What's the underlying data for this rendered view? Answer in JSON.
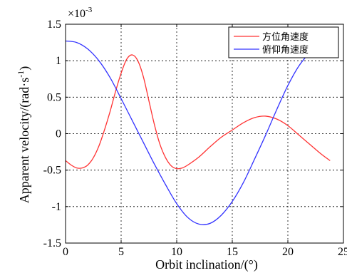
{
  "chart_data": {
    "type": "line",
    "xlabel": "Orbit inclination/(°)",
    "ylabel_parts": {
      "main": "Apparent velocity/(rad·s",
      "sup": "-1",
      "end": ")"
    },
    "scale_label": {
      "base": "×10",
      "exp": "-3"
    },
    "xlim": [
      0,
      25
    ],
    "ylim": [
      -1.5,
      1.5
    ],
    "x_ticks": [
      "0",
      "5",
      "10",
      "15",
      "20",
      "25"
    ],
    "y_ticks": [
      "-1.5",
      "-1",
      "-0.5",
      "0",
      "0.5",
      "1",
      "1.5"
    ],
    "grid": true,
    "legend_position": "top-right",
    "series": [
      {
        "name": "方位角速度",
        "color": "#ff3333",
        "x": [
          0,
          0.5,
          1,
          1.5,
          2,
          2.5,
          3,
          3.5,
          4,
          4.5,
          5,
          5.5,
          6,
          6.5,
          7,
          7.5,
          8,
          8.5,
          9,
          9.5,
          10,
          10.5,
          11,
          12,
          13,
          14,
          15,
          16,
          17,
          18,
          19,
          20,
          21,
          22,
          23,
          23.8
        ],
        "y": [
          -0.37,
          -0.43,
          -0.47,
          -0.47,
          -0.43,
          -0.33,
          -0.17,
          0.05,
          0.3,
          0.58,
          0.83,
          1.02,
          1.08,
          1.0,
          0.78,
          0.45,
          0.12,
          -0.15,
          -0.33,
          -0.44,
          -0.48,
          -0.47,
          -0.43,
          -0.32,
          -0.18,
          -0.05,
          0.05,
          0.15,
          0.22,
          0.24,
          0.2,
          0.11,
          -0.02,
          -0.15,
          -0.28,
          -0.37
        ]
      },
      {
        "name": "俯仰角速度",
        "color": "#3333ff",
        "x": [
          0,
          1,
          2,
          3,
          4,
          5,
          6,
          7,
          8,
          9,
          10,
          11,
          12,
          13,
          14,
          15,
          16,
          17,
          18,
          19,
          20,
          21,
          22
        ],
        "y": [
          1.27,
          1.25,
          1.16,
          1.0,
          0.77,
          0.48,
          0.18,
          -0.12,
          -0.42,
          -0.7,
          -0.96,
          -1.15,
          -1.24,
          -1.23,
          -1.12,
          -0.93,
          -0.67,
          -0.35,
          -0.02,
          0.33,
          0.66,
          0.93,
          1.12
        ]
      }
    ]
  }
}
